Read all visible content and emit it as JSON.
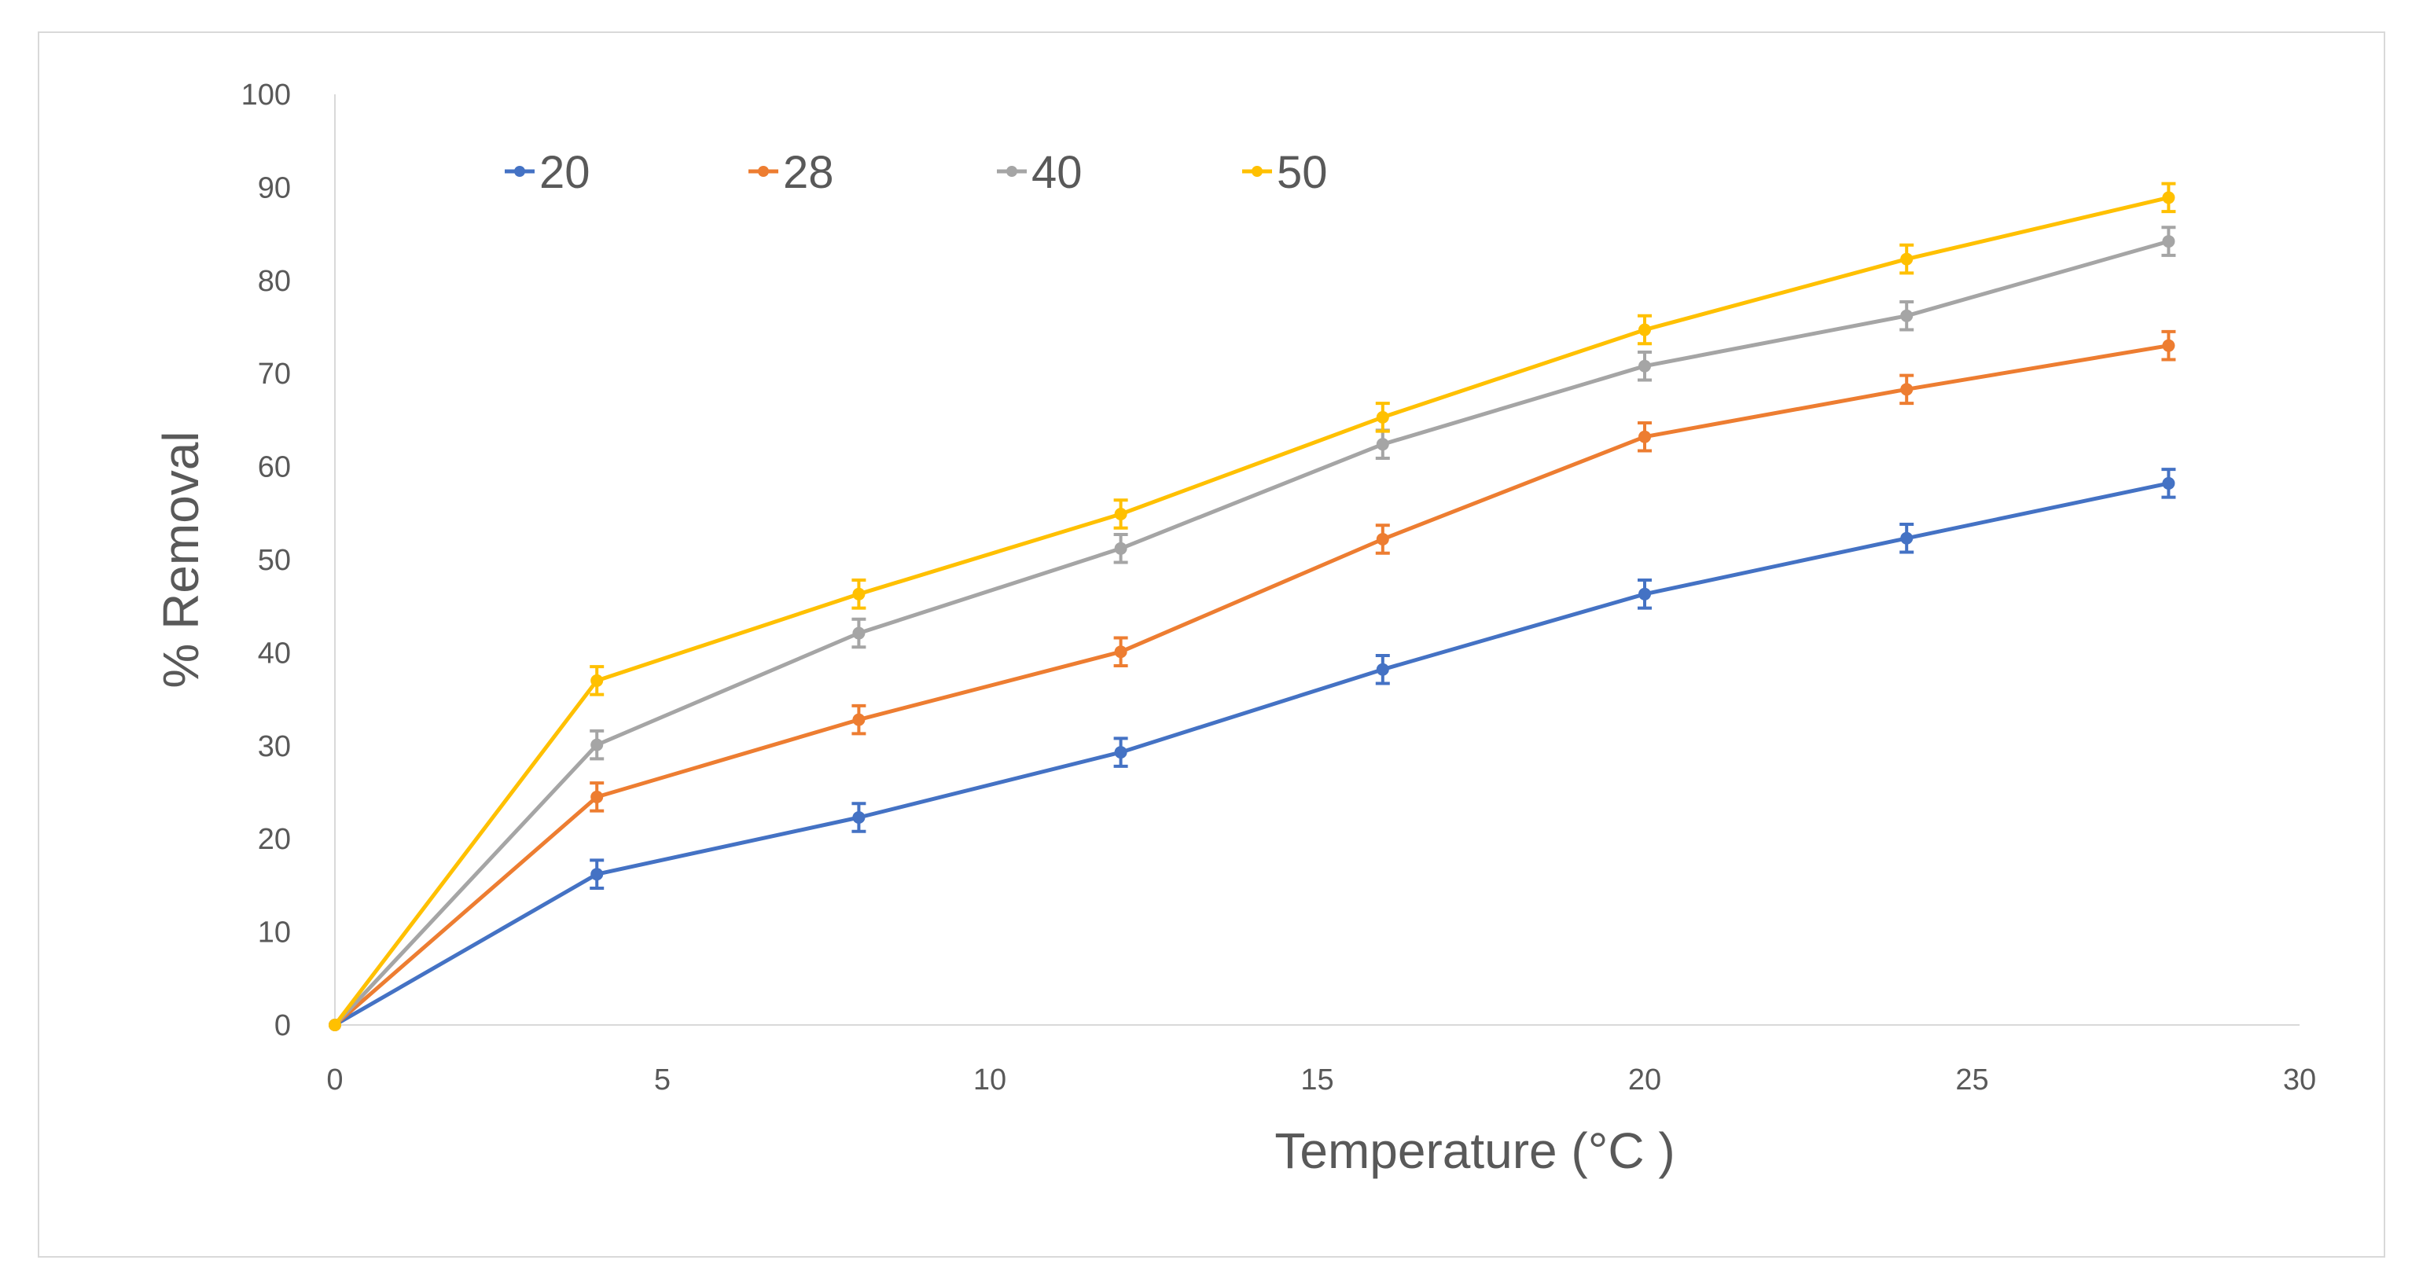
{
  "chart_data": {
    "type": "line",
    "title": "",
    "xlabel": "Temperature (°C )",
    "ylabel": "% Removal",
    "xlim": [
      0,
      30
    ],
    "ylim": [
      0,
      100
    ],
    "xticks": [
      "0",
      "5",
      "10",
      "15",
      "20",
      "25",
      "30"
    ],
    "yticks": [
      "0",
      "10",
      "20",
      "30",
      "40",
      "50",
      "60",
      "70",
      "80",
      "90",
      "100"
    ],
    "grid": false,
    "legend_position": "top-left",
    "x": [
      0,
      4,
      8,
      12,
      16,
      20,
      24,
      28
    ],
    "series": [
      {
        "name": "20",
        "color": "#4472C4",
        "values": [
          0,
          16.2,
          22.3,
          29.3,
          38.2,
          46.3,
          52.3,
          58.2
        ],
        "errors": [
          0,
          1.5,
          1.5,
          1.5,
          1.5,
          1.5,
          1.5,
          1.5
        ]
      },
      {
        "name": "28",
        "color": "#ED7D31",
        "values": [
          0,
          24.5,
          32.8,
          40.1,
          52.2,
          63.2,
          68.3,
          73.0
        ],
        "errors": [
          0,
          1.5,
          1.5,
          1.5,
          1.5,
          1.5,
          1.5,
          1.5
        ]
      },
      {
        "name": "40",
        "color": "#A5A5A5",
        "values": [
          0,
          30.1,
          42.1,
          51.2,
          62.4,
          70.8,
          76.2,
          84.2
        ],
        "errors": [
          0,
          1.5,
          1.5,
          1.5,
          1.5,
          1.5,
          1.5,
          1.5
        ]
      },
      {
        "name": "50",
        "color": "#FFC000",
        "values": [
          0,
          37.0,
          46.3,
          54.9,
          65.3,
          74.7,
          82.3,
          88.9
        ],
        "errors": [
          0,
          1.5,
          1.5,
          1.5,
          1.5,
          1.5,
          1.5,
          1.5
        ]
      }
    ]
  }
}
